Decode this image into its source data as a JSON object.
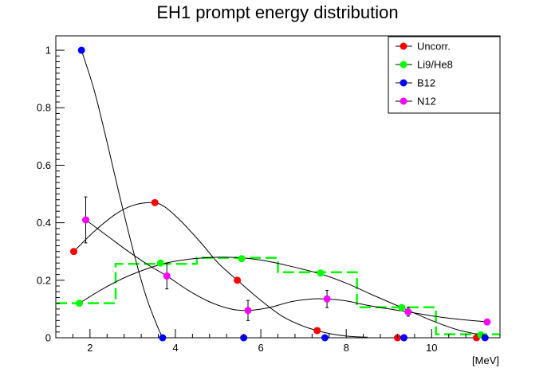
{
  "chart_data": {
    "type": "scatter",
    "title": "EH1 prompt energy distribution",
    "xlabel": "[MeV]",
    "ylabel": "",
    "xlim": [
      1.2,
      11.6
    ],
    "ylim": [
      0,
      1.05
    ],
    "x_ticks": [
      2,
      4,
      6,
      8,
      10
    ],
    "y_ticks": [
      0,
      0.2,
      0.4,
      0.6,
      0.8,
      1
    ],
    "x_tick_labels": [
      "2",
      "4",
      "6",
      "8",
      "10"
    ],
    "y_tick_labels": [
      "0",
      "0.2",
      "0.4",
      "0.6",
      "0.8",
      "1"
    ],
    "grid": false,
    "legend_position": "top-right",
    "series": [
      {
        "name": "Uncorr.",
        "color": "#ff0000",
        "points": [
          {
            "x": 1.62,
            "y": 0.3
          },
          {
            "x": 3.52,
            "y": 0.47
          },
          {
            "x": 5.45,
            "y": 0.2
          },
          {
            "x": 7.32,
            "y": 0.025
          },
          {
            "x": 9.2,
            "y": 0.0
          },
          {
            "x": 11.05,
            "y": 0.0
          }
        ],
        "curve": [
          {
            "x": 1.62,
            "y": 0.3
          },
          {
            "x": 2.1,
            "y": 0.37
          },
          {
            "x": 2.6,
            "y": 0.43
          },
          {
            "x": 3.0,
            "y": 0.46
          },
          {
            "x": 3.4,
            "y": 0.47
          },
          {
            "x": 3.7,
            "y": 0.46
          },
          {
            "x": 4.1,
            "y": 0.41
          },
          {
            "x": 4.6,
            "y": 0.33
          },
          {
            "x": 5.0,
            "y": 0.26
          },
          {
            "x": 5.45,
            "y": 0.2
          },
          {
            "x": 6.0,
            "y": 0.13
          },
          {
            "x": 6.5,
            "y": 0.075
          },
          {
            "x": 7.0,
            "y": 0.04
          },
          {
            "x": 7.5,
            "y": 0.018
          },
          {
            "x": 8.0,
            "y": 0.006
          },
          {
            "x": 8.5,
            "y": 0.002
          }
        ]
      },
      {
        "name": "Li9/He8",
        "color": "#00ff00",
        "points": [
          {
            "x": 1.75,
            "y": 0.12
          },
          {
            "x": 3.65,
            "y": 0.26
          },
          {
            "x": 5.55,
            "y": 0.275
          },
          {
            "x": 7.4,
            "y": 0.225
          },
          {
            "x": 9.3,
            "y": 0.105
          },
          {
            "x": 11.15,
            "y": 0.01
          }
        ],
        "curve": [
          {
            "x": 1.75,
            "y": 0.12
          },
          {
            "x": 2.3,
            "y": 0.17
          },
          {
            "x": 2.9,
            "y": 0.215
          },
          {
            "x": 3.65,
            "y": 0.255
          },
          {
            "x": 4.3,
            "y": 0.273
          },
          {
            "x": 5.0,
            "y": 0.28
          },
          {
            "x": 5.55,
            "y": 0.278
          },
          {
            "x": 6.2,
            "y": 0.265
          },
          {
            "x": 6.8,
            "y": 0.245
          },
          {
            "x": 7.4,
            "y": 0.222
          },
          {
            "x": 8.0,
            "y": 0.19
          },
          {
            "x": 8.6,
            "y": 0.15
          },
          {
            "x": 9.3,
            "y": 0.105
          },
          {
            "x": 10.0,
            "y": 0.06
          },
          {
            "x": 10.6,
            "y": 0.028
          },
          {
            "x": 11.15,
            "y": 0.01
          }
        ],
        "histogram": [
          {
            "x0": 1.2,
            "x1": 2.6,
            "y": 0.12
          },
          {
            "x0": 2.6,
            "x1": 4.5,
            "y": 0.257
          },
          {
            "x0": 4.5,
            "x1": 6.4,
            "y": 0.278
          },
          {
            "x0": 6.4,
            "x1": 8.25,
            "y": 0.228
          },
          {
            "x0": 8.25,
            "x1": 10.1,
            "y": 0.106
          },
          {
            "x0": 10.1,
            "x1": 11.6,
            "y": 0.012
          }
        ]
      },
      {
        "name": "B12",
        "color": "#0000ff",
        "points": [
          {
            "x": 1.8,
            "y": 1.0
          },
          {
            "x": 3.7,
            "y": 0.0
          },
          {
            "x": 5.6,
            "y": 0.0
          },
          {
            "x": 7.5,
            "y": 0.0
          },
          {
            "x": 9.35,
            "y": 0.0
          },
          {
            "x": 11.25,
            "y": 0.0
          }
        ],
        "curve": [
          {
            "x": 1.8,
            "y": 1.0
          },
          {
            "x": 2.1,
            "y": 0.86
          },
          {
            "x": 2.4,
            "y": 0.68
          },
          {
            "x": 2.7,
            "y": 0.49
          },
          {
            "x": 3.0,
            "y": 0.31
          },
          {
            "x": 3.3,
            "y": 0.15
          },
          {
            "x": 3.55,
            "y": 0.05
          },
          {
            "x": 3.7,
            "y": 0.0
          }
        ]
      },
      {
        "name": "N12",
        "color": "#ff00ff",
        "points": [
          {
            "x": 1.9,
            "y": 0.41,
            "err": 0.08
          },
          {
            "x": 3.8,
            "y": 0.215,
            "err": 0.045
          },
          {
            "x": 5.7,
            "y": 0.095,
            "err": 0.035
          },
          {
            "x": 7.55,
            "y": 0.135,
            "err": 0.03
          },
          {
            "x": 9.45,
            "y": 0.09,
            "err": 0.015
          },
          {
            "x": 11.3,
            "y": 0.055,
            "err": 0.0
          }
        ],
        "curve": [
          {
            "x": 1.9,
            "y": 0.41
          },
          {
            "x": 2.4,
            "y": 0.355
          },
          {
            "x": 2.9,
            "y": 0.3
          },
          {
            "x": 3.4,
            "y": 0.25
          },
          {
            "x": 3.8,
            "y": 0.215
          },
          {
            "x": 4.3,
            "y": 0.165
          },
          {
            "x": 4.8,
            "y": 0.125
          },
          {
            "x": 5.3,
            "y": 0.1
          },
          {
            "x": 5.7,
            "y": 0.095
          },
          {
            "x": 6.2,
            "y": 0.105
          },
          {
            "x": 6.7,
            "y": 0.125
          },
          {
            "x": 7.2,
            "y": 0.135
          },
          {
            "x": 7.55,
            "y": 0.135
          },
          {
            "x": 8.0,
            "y": 0.128
          },
          {
            "x": 8.6,
            "y": 0.11
          },
          {
            "x": 9.45,
            "y": 0.09
          },
          {
            "x": 10.3,
            "y": 0.07
          },
          {
            "x": 11.3,
            "y": 0.055
          }
        ]
      }
    ]
  }
}
